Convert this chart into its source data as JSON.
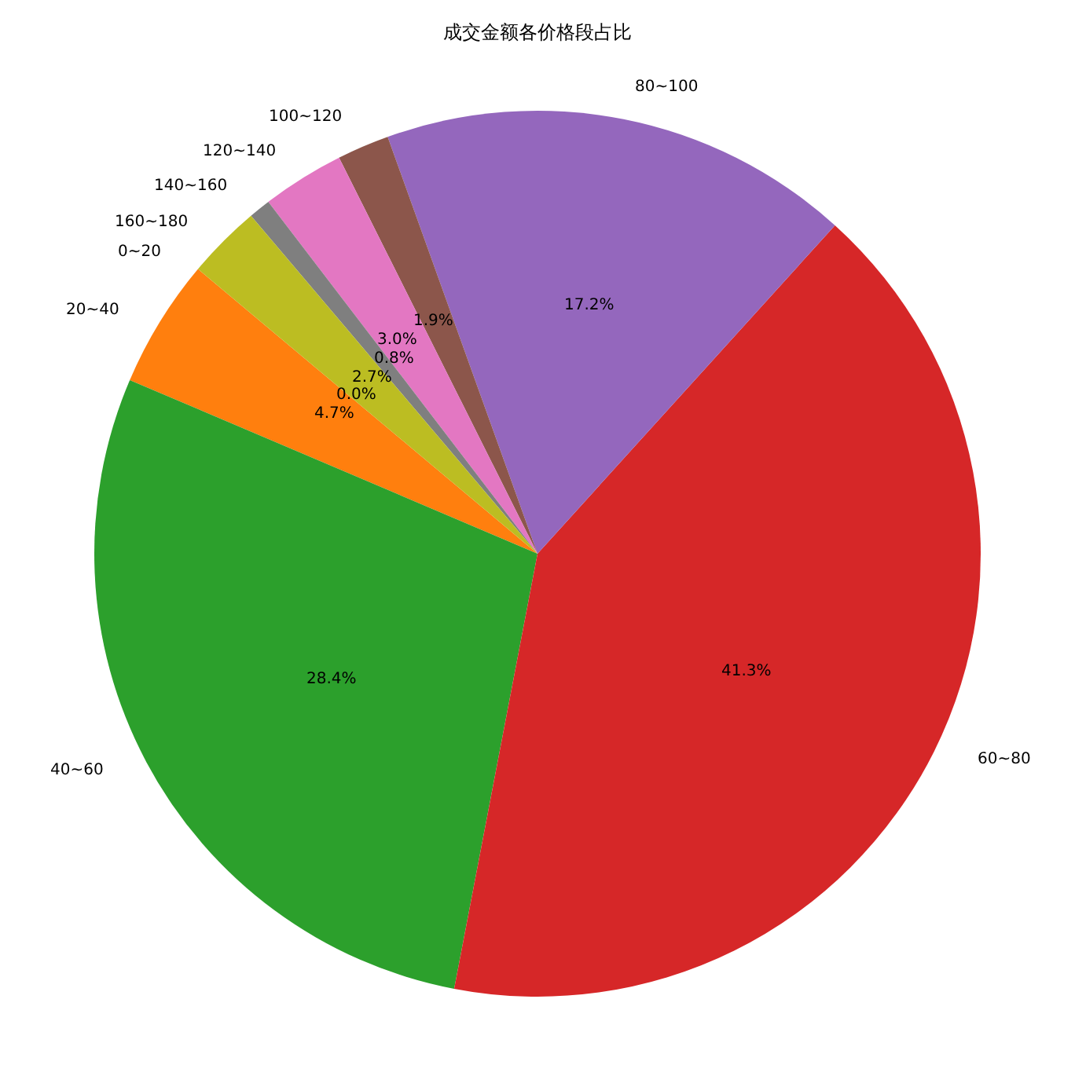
{
  "chart_data": {
    "type": "pie",
    "title": "成交金额各价格段占比",
    "categories": [
      "0~20",
      "20~40",
      "40~60",
      "60~80",
      "80~100",
      "100~120",
      "120~140",
      "140~160",
      "160~180"
    ],
    "values": [
      0.0,
      4.7,
      28.4,
      41.3,
      17.2,
      1.9,
      3.0,
      0.8,
      2.7
    ],
    "colors": [
      "#1f77b4",
      "#ff7f0e",
      "#2ca02c",
      "#d62728",
      "#9467bd",
      "#8c564b",
      "#e377c2",
      "#7f7f7f",
      "#bcbd22"
    ],
    "value_labels": [
      "0.0%",
      "4.7%",
      "28.4%",
      "41.3%",
      "17.2%",
      "1.9%",
      "3.0%",
      "0.8%",
      "2.7%"
    ],
    "legend": false
  }
}
